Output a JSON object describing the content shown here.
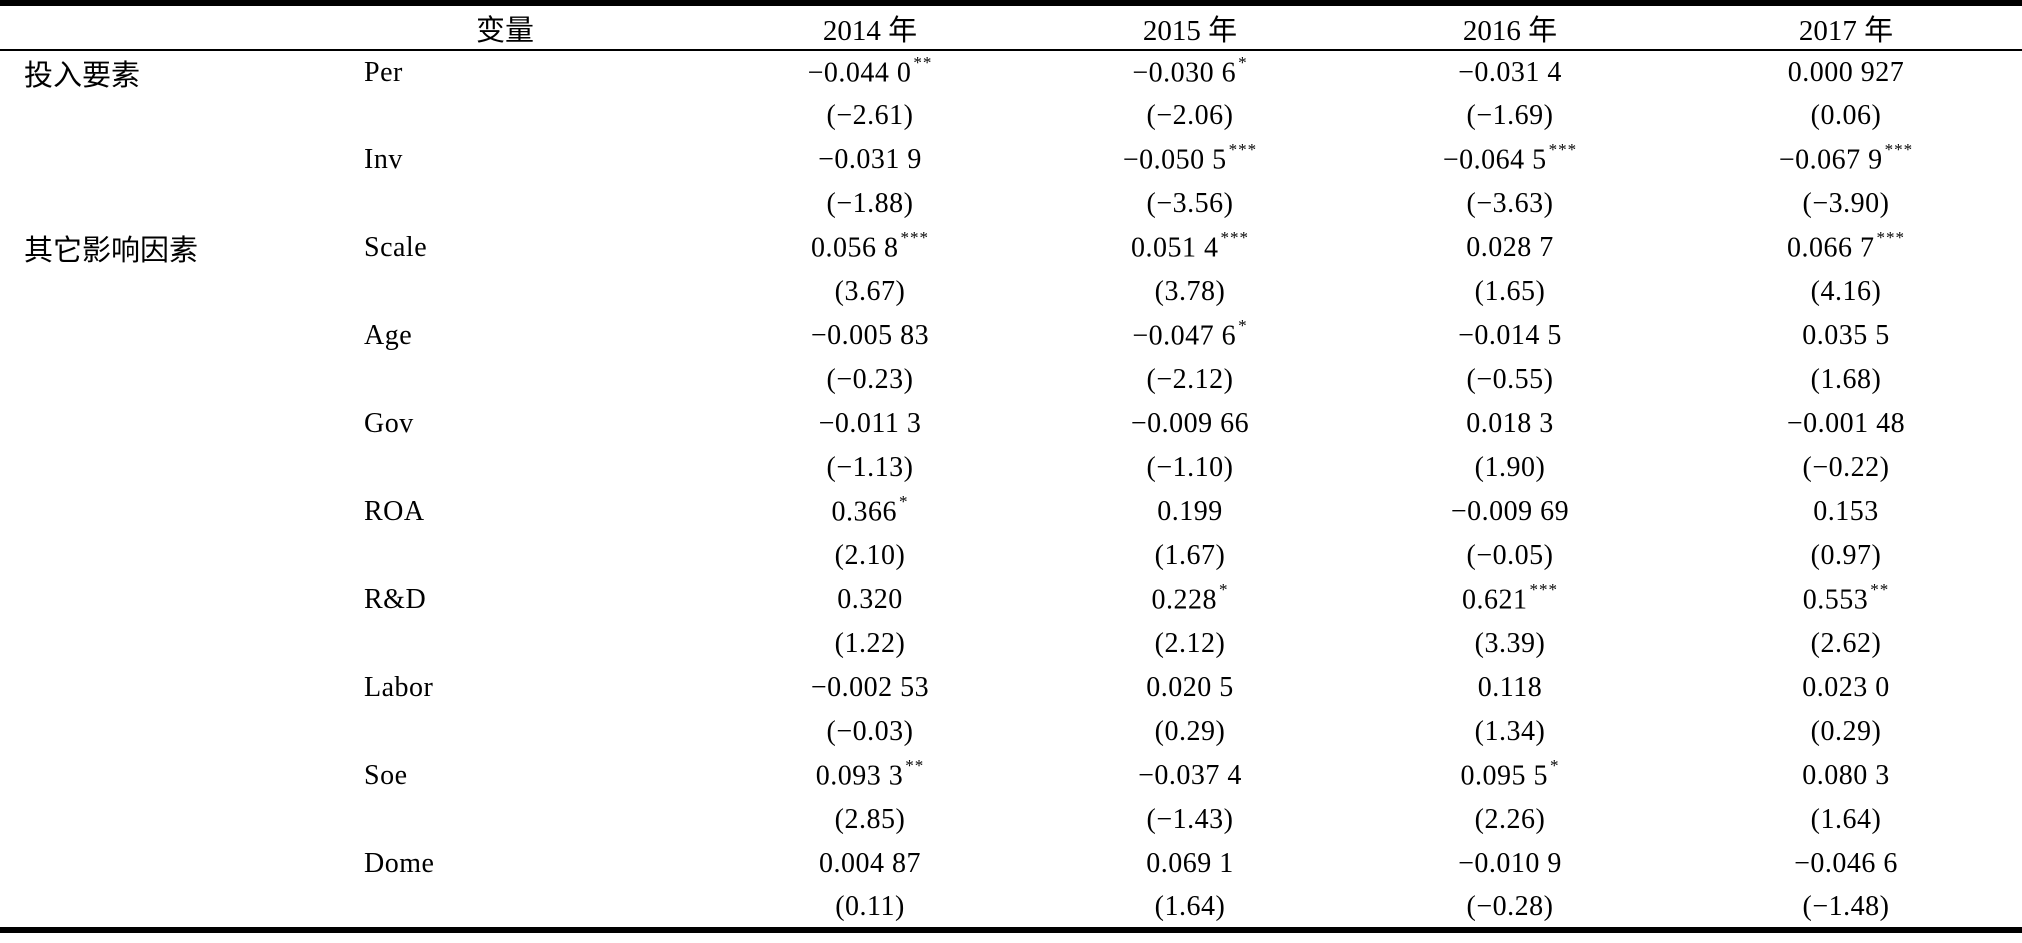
{
  "page": {
    "background": "#ffffff",
    "text_color": "#000000",
    "rule_color": "#000000"
  },
  "table": {
    "header": {
      "group_label": "",
      "variable_label": "变量",
      "year_labels": [
        "2014 年",
        "2015 年",
        "2016 年",
        "2017 年"
      ]
    },
    "rows": [
      {
        "group": "投入要素",
        "variable": "Per",
        "cells": [
          {
            "coef": "−0.044 0",
            "stars": "**",
            "t": "(−2.61)"
          },
          {
            "coef": "−0.030 6",
            "stars": "*",
            "t": "(−2.06)"
          },
          {
            "coef": "−0.031 4",
            "stars": "",
            "t": "(−1.69)"
          },
          {
            "coef": "0.000 927",
            "stars": "",
            "t": "(0.06)"
          }
        ]
      },
      {
        "group": "",
        "variable": "Inv",
        "cells": [
          {
            "coef": "−0.031 9",
            "stars": "",
            "t": "(−1.88)"
          },
          {
            "coef": "−0.050 5",
            "stars": "***",
            "t": "(−3.56)"
          },
          {
            "coef": "−0.064 5",
            "stars": "***",
            "t": "(−3.63)"
          },
          {
            "coef": "−0.067 9",
            "stars": "***",
            "t": "(−3.90)"
          }
        ]
      },
      {
        "group": "其它影响因素",
        "variable": "Scale",
        "cells": [
          {
            "coef": "0.056 8",
            "stars": "***",
            "t": "(3.67)"
          },
          {
            "coef": "0.051 4",
            "stars": "***",
            "t": "(3.78)"
          },
          {
            "coef": "0.028 7",
            "stars": "",
            "t": "(1.65)"
          },
          {
            "coef": "0.066 7",
            "stars": "***",
            "t": "(4.16)"
          }
        ]
      },
      {
        "group": "",
        "variable": "Age",
        "cells": [
          {
            "coef": "−0.005 83",
            "stars": "",
            "t": "(−0.23)"
          },
          {
            "coef": "−0.047 6",
            "stars": "*",
            "t": "(−2.12)"
          },
          {
            "coef": "−0.014 5",
            "stars": "",
            "t": "(−0.55)"
          },
          {
            "coef": "0.035 5",
            "stars": "",
            "t": "(1.68)"
          }
        ]
      },
      {
        "group": "",
        "variable": "Gov",
        "cells": [
          {
            "coef": "−0.011 3",
            "stars": "",
            "t": "(−1.13)"
          },
          {
            "coef": "−0.009 66",
            "stars": "",
            "t": "(−1.10)"
          },
          {
            "coef": "0.018 3",
            "stars": "",
            "t": "(1.90)"
          },
          {
            "coef": "−0.001 48",
            "stars": "",
            "t": "(−0.22)"
          }
        ]
      },
      {
        "group": "",
        "variable": "ROA",
        "cells": [
          {
            "coef": "0.366",
            "stars": "*",
            "t": "(2.10)"
          },
          {
            "coef": "0.199",
            "stars": "",
            "t": "(1.67)"
          },
          {
            "coef": "−0.009 69",
            "stars": "",
            "t": "(−0.05)"
          },
          {
            "coef": "0.153",
            "stars": "",
            "t": "(0.97)"
          }
        ]
      },
      {
        "group": "",
        "variable": "R&D",
        "cells": [
          {
            "coef": "0.320",
            "stars": "",
            "t": "(1.22)"
          },
          {
            "coef": "0.228",
            "stars": "*",
            "t": "(2.12)"
          },
          {
            "coef": "0.621",
            "stars": "***",
            "t": "(3.39)"
          },
          {
            "coef": "0.553",
            "stars": "**",
            "t": "(2.62)"
          }
        ]
      },
      {
        "group": "",
        "variable": "Labor",
        "cells": [
          {
            "coef": "−0.002 53",
            "stars": "",
            "t": "(−0.03)"
          },
          {
            "coef": "0.020 5",
            "stars": "",
            "t": "(0.29)"
          },
          {
            "coef": "0.118",
            "stars": "",
            "t": "(1.34)"
          },
          {
            "coef": "0.023 0",
            "stars": "",
            "t": "(0.29)"
          }
        ]
      },
      {
        "group": "",
        "variable": "Soe",
        "cells": [
          {
            "coef": "0.093 3",
            "stars": "**",
            "t": "(2.85)"
          },
          {
            "coef": "−0.037 4",
            "stars": "",
            "t": "(−1.43)"
          },
          {
            "coef": "0.095 5",
            "stars": "*",
            "t": "(2.26)"
          },
          {
            "coef": "0.080 3",
            "stars": "",
            "t": "(1.64)"
          }
        ]
      },
      {
        "group": "",
        "variable": "Dome",
        "cells": [
          {
            "coef": "0.004 87",
            "stars": "",
            "t": "(0.11)"
          },
          {
            "coef": "0.069 1",
            "stars": "",
            "t": "(1.64)"
          },
          {
            "coef": "−0.010 9",
            "stars": "",
            "t": "(−0.28)"
          },
          {
            "coef": "−0.046 6",
            "stars": "",
            "t": "(−1.48)"
          }
        ]
      }
    ]
  }
}
